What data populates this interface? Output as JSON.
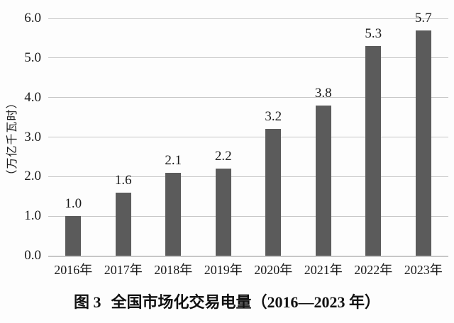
{
  "chart_data": {
    "type": "bar",
    "title": "图3 全国市场化交易电量（2016—2023年）",
    "ylabel": "（万亿千瓦时）",
    "xlabel": "",
    "categories": [
      "2016年",
      "2017年",
      "2018年",
      "2019年",
      "2020年",
      "2021年",
      "2022年",
      "2023年"
    ],
    "values": [
      1.0,
      1.6,
      2.1,
      2.2,
      3.2,
      3.8,
      5.3,
      5.7
    ],
    "data_labels": [
      "1.0",
      "1.6",
      "2.1",
      "2.2",
      "3.2",
      "3.8",
      "5.3",
      "5.7"
    ],
    "ylim": [
      0.0,
      6.0
    ],
    "ytick_step": 1.0,
    "yticks": [
      "0.0",
      "1.0",
      "2.0",
      "3.0",
      "4.0",
      "5.0",
      "6.0"
    ],
    "grid": "horizontal",
    "legend": "none",
    "bar_color": "#5b5b5b",
    "gridline_color": "#c6c6c6",
    "text_color": "#1a1a1a",
    "background_color": "#fdfdfd"
  },
  "caption": {
    "figure_label": "图 3",
    "title_text": "全国市场化交易电量（2016—2023 年）"
  }
}
